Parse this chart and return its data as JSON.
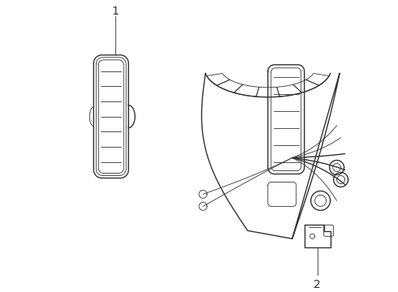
{
  "bg_color": "#ffffff",
  "line_color": "#333333",
  "lw": 1.0,
  "tlw": 0.6,
  "label_fontsize": 10,
  "fig_w": 4.9,
  "fig_h": 3.6,
  "dpi": 100
}
